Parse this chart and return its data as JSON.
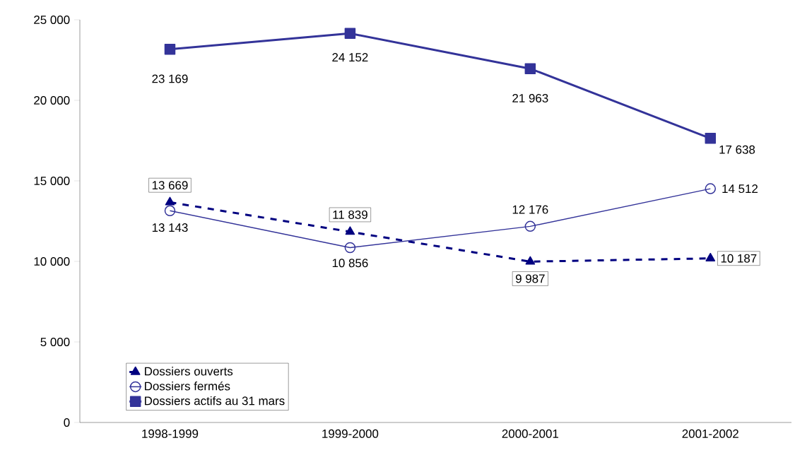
{
  "chart_data": {
    "type": "line",
    "categories": [
      "1998-1999",
      "1999-2000",
      "2000-2001",
      "2001-2002"
    ],
    "series": [
      {
        "name": "Dossiers ouverts",
        "color": "#000080",
        "marker": "triangle",
        "line_style": "dashed",
        "values": [
          13669,
          11839,
          9987,
          10187
        ],
        "value_labels": [
          "13 669",
          "11 839",
          "9 987",
          "10 187"
        ]
      },
      {
        "name": "Dossiers fermés",
        "color": "#333399",
        "marker": "circle",
        "line_style": "solid",
        "values": [
          13143,
          10856,
          12176,
          14512
        ],
        "value_labels": [
          "13 143",
          "10 856",
          "12 176",
          "14 512"
        ]
      },
      {
        "name": "Dossiers actifs au 31 mars",
        "color": "#333399",
        "marker": "square",
        "line_style": "solid",
        "values": [
          23169,
          24152,
          21963,
          17638
        ],
        "value_labels": [
          "23 169",
          "24 152",
          "21 963",
          "17 638"
        ]
      }
    ],
    "ylim": [
      0,
      25000
    ],
    "yticks": [
      {
        "value": 0,
        "label": "0"
      },
      {
        "value": 5000,
        "label": "5 000"
      },
      {
        "value": 10000,
        "label": "10 000"
      },
      {
        "value": 15000,
        "label": "15 000"
      },
      {
        "value": 20000,
        "label": "20 000"
      },
      {
        "value": 25000,
        "label": "25 000"
      }
    ],
    "grid": false,
    "legend": "bottom left"
  }
}
